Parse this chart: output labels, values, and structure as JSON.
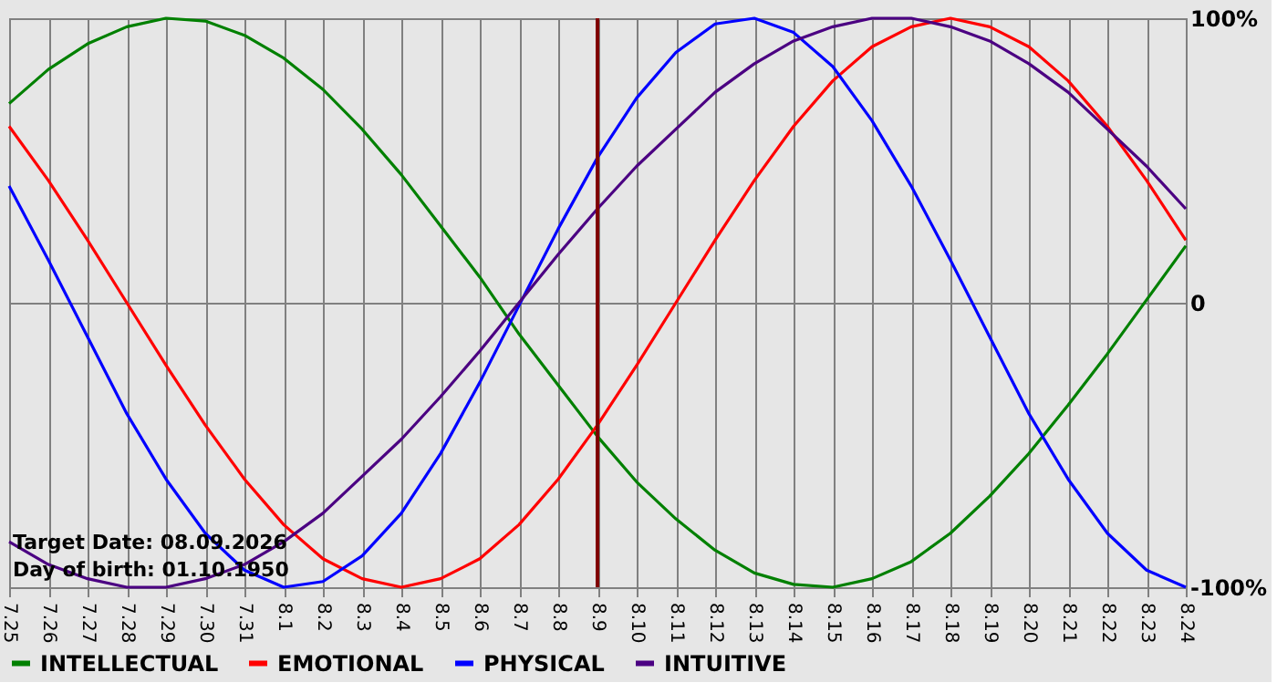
{
  "chart_data": {
    "type": "line",
    "categories": [
      "7.25",
      "7.26",
      "7.27",
      "7.28",
      "7.29",
      "7.30",
      "7.31",
      "8.1",
      "8.2",
      "8.3",
      "8.4",
      "8.5",
      "8.6",
      "8.7",
      "8.8",
      "8.9",
      "8.10",
      "8.11",
      "8.12",
      "8.13",
      "8.14",
      "8.15",
      "8.16",
      "8.17",
      "8.18",
      "8.19",
      "8.20",
      "8.21",
      "8.22",
      "8.23",
      "8.24"
    ],
    "series": [
      {
        "name": "INTELLECTUAL",
        "color": "#008000",
        "values": [
          70,
          82,
          91,
          97,
          100,
          99,
          94,
          86,
          75,
          61,
          45,
          27,
          9,
          -11,
          -29,
          -47,
          -63,
          -76,
          -87,
          -95,
          -99,
          -100,
          -97,
          -91,
          -81,
          -68,
          -53,
          -36,
          -18,
          1,
          20
        ]
      },
      {
        "name": "EMOTIONAL",
        "color": "#ff0000",
        "values": [
          62,
          43,
          22,
          0,
          -22,
          -43,
          -62,
          -78,
          -90,
          -97,
          -100,
          -97,
          -90,
          -78,
          -62,
          -43,
          -22,
          0,
          22,
          43,
          62,
          78,
          90,
          97,
          100,
          97,
          90,
          78,
          62,
          43,
          22
        ]
      },
      {
        "name": "PHYSICAL",
        "color": "#0000ff",
        "values": [
          41,
          15,
          -12,
          -39,
          -62,
          -81,
          -94,
          -100,
          -98,
          -89,
          -74,
          -53,
          -28,
          -1,
          26,
          51,
          72,
          88,
          98,
          100,
          95,
          83,
          64,
          41,
          15,
          -12,
          -39,
          -62,
          -81,
          -94,
          -100
        ]
      },
      {
        "name": "INTUITIVE",
        "color": "#4b0082",
        "values": [
          -84,
          -92,
          -97,
          -100,
          -100,
          -97,
          -92,
          -84,
          -74,
          -61,
          -48,
          -33,
          -17,
          0,
          17,
          33,
          48,
          61,
          74,
          84,
          92,
          97,
          100,
          100,
          97,
          92,
          84,
          74,
          61,
          48,
          33
        ]
      }
    ],
    "ylim": [
      -100,
      100
    ],
    "yticks": [
      {
        "value": -100,
        "label": "-100%"
      },
      {
        "value": 0,
        "label": "0"
      },
      {
        "value": 100,
        "label": "100%"
      }
    ],
    "grid": true,
    "legend": "bottom",
    "ref_lines": [
      {
        "axis": "x",
        "value": "8.9",
        "color": "#800000"
      }
    ],
    "annotations": [
      "Target Date: 08.09.2026",
      "Day of birth: 01.10.1950"
    ]
  }
}
